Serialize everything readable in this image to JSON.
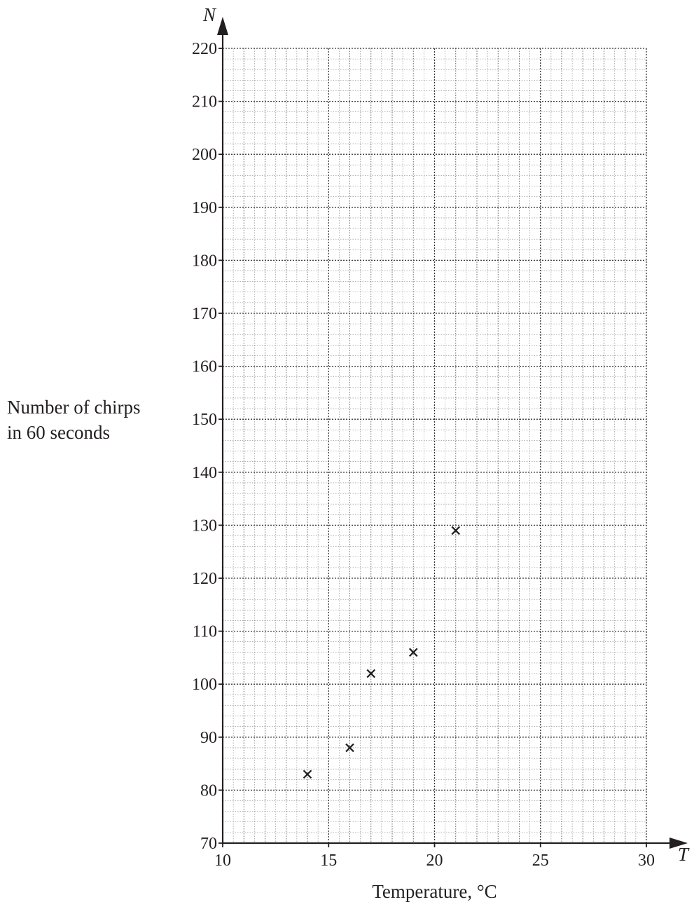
{
  "chart_data": {
    "type": "scatter",
    "title": "",
    "xlabel": "Temperature, °C",
    "ylabel_lines": [
      "Number of chirps",
      "in 60 seconds"
    ],
    "x_axis_letter": "T",
    "y_axis_letter": "N",
    "xlim": [
      10,
      30
    ],
    "ylim": [
      70,
      220
    ],
    "x_ticks": [
      10,
      15,
      20,
      25,
      30
    ],
    "y_ticks": [
      70,
      80,
      90,
      100,
      110,
      120,
      130,
      140,
      150,
      160,
      170,
      180,
      190,
      200,
      210,
      220
    ],
    "grid": true,
    "marker": "cross",
    "points": [
      {
        "x": 14,
        "y": 83
      },
      {
        "x": 16,
        "y": 88
      },
      {
        "x": 17,
        "y": 102
      },
      {
        "x": 19,
        "y": 106
      },
      {
        "x": 21,
        "y": 129
      }
    ]
  }
}
